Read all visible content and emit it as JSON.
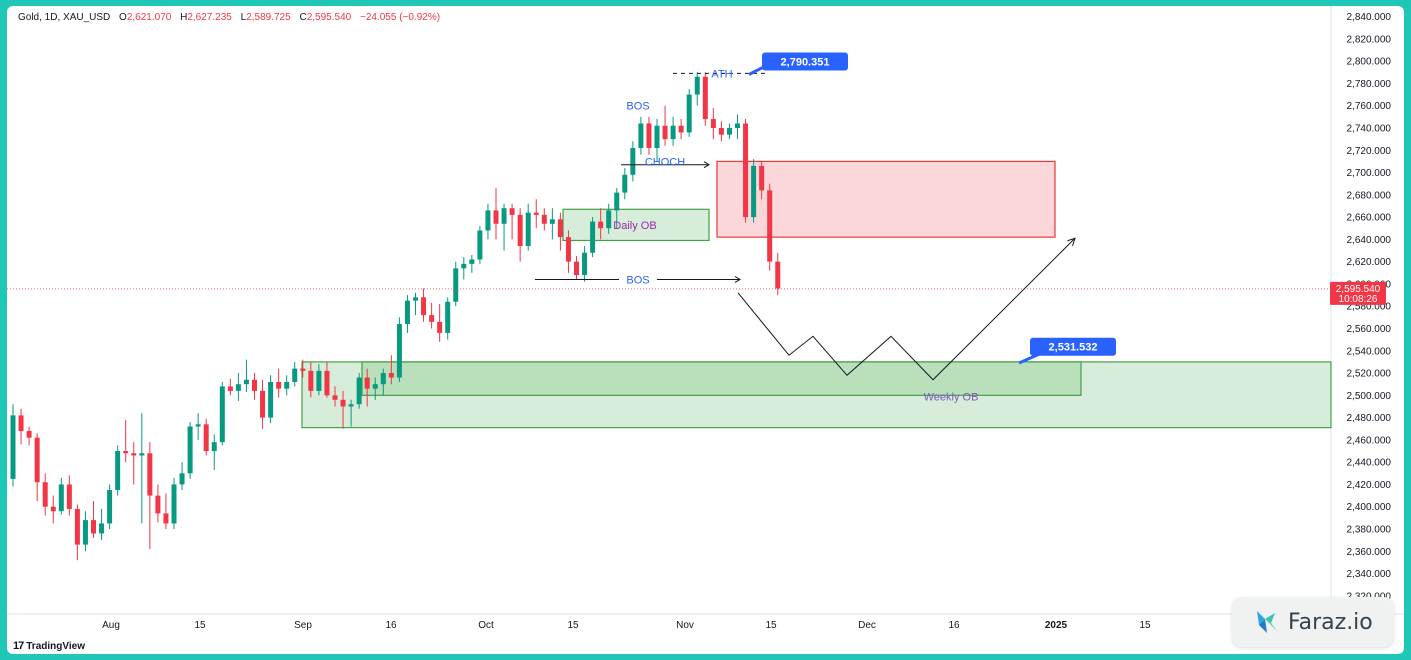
{
  "header": {
    "symbol": "Gold, 1D, XAU_USD",
    "open_label": "O",
    "open": "2,621.070",
    "high_label": "H",
    "high": "2,627.235",
    "low_label": "L",
    "low": "2,589.725",
    "close_label": "C",
    "close": "2,595.540",
    "change": "−24.055 (−0.92%)"
  },
  "footer": {
    "brand": "TradingView"
  },
  "watermark": {
    "text": "Faraz.io"
  },
  "colors": {
    "up": "#089981",
    "down": "#f23645",
    "zone_green": "#4caf50",
    "zone_red": "#f23645",
    "label_blue": "#2962ff"
  },
  "chart_data": {
    "type": "candlestick",
    "y_range": [
      2310,
      2845
    ],
    "price_ticks": [
      "2,320.000",
      "2,340.000",
      "2,360.000",
      "2,380.000",
      "2,400.000",
      "2,420.000",
      "2,440.000",
      "2,460.000",
      "2,480.000",
      "2,500.000",
      "2,520.000",
      "2,540.000",
      "2,560.000",
      "2,580.000",
      "2,600.000",
      "2,620.000",
      "2,640.000",
      "2,660.000",
      "2,680.000",
      "2,700.000",
      "2,720.000",
      "2,740.000",
      "2,760.000",
      "2,780.000",
      "2,800.000",
      "2,820.000",
      "2,840.000"
    ],
    "time_ticks": [
      {
        "label": "Aug",
        "x": 82
      },
      {
        "label": "15",
        "x": 171
      },
      {
        "label": "Sep",
        "x": 274
      },
      {
        "label": "16",
        "x": 362
      },
      {
        "label": "Oct",
        "x": 457
      },
      {
        "label": "15",
        "x": 544
      },
      {
        "label": "Nov",
        "x": 656
      },
      {
        "label": "15",
        "x": 742
      },
      {
        "label": "Dec",
        "x": 838
      },
      {
        "label": "16",
        "x": 925
      },
      {
        "label": "2025",
        "x": 1027
      },
      {
        "label": "15",
        "x": 1116
      }
    ],
    "current_price": {
      "price": 2595.54,
      "label": "2,595.540",
      "countdown": "10:08:26"
    },
    "candles": [
      [
        2425,
        2492,
        2418,
        2482
      ],
      [
        2482,
        2488,
        2456,
        2468
      ],
      [
        2468,
        2472,
        2455,
        2462
      ],
      [
        2462,
        2466,
        2405,
        2422
      ],
      [
        2422,
        2430,
        2392,
        2400
      ],
      [
        2400,
        2410,
        2385,
        2396
      ],
      [
        2396,
        2426,
        2393,
        2420
      ],
      [
        2420,
        2428,
        2392,
        2398
      ],
      [
        2398,
        2402,
        2352,
        2366
      ],
      [
        2366,
        2396,
        2360,
        2388
      ],
      [
        2388,
        2405,
        2372,
        2376
      ],
      [
        2376,
        2398,
        2370,
        2385
      ],
      [
        2385,
        2420,
        2380,
        2415
      ],
      [
        2415,
        2455,
        2410,
        2450
      ],
      [
        2450,
        2478,
        2440,
        2448
      ],
      [
        2448,
        2458,
        2420,
        2446
      ],
      [
        2446,
        2484,
        2385,
        2448
      ],
      [
        2448,
        2458,
        2362,
        2410
      ],
      [
        2410,
        2420,
        2386,
        2394
      ],
      [
        2394,
        2412,
        2380,
        2385
      ],
      [
        2385,
        2426,
        2380,
        2420
      ],
      [
        2420,
        2440,
        2415,
        2430
      ],
      [
        2430,
        2476,
        2425,
        2472
      ],
      [
        2472,
        2484,
        2460,
        2474
      ],
      [
        2474,
        2479,
        2446,
        2450
      ],
      [
        2450,
        2465,
        2433,
        2458
      ],
      [
        2458,
        2512,
        2455,
        2508
      ],
      [
        2508,
        2515,
        2500,
        2504
      ],
      [
        2504,
        2520,
        2495,
        2510
      ],
      [
        2510,
        2532,
        2503,
        2514
      ],
      [
        2514,
        2520,
        2496,
        2504
      ],
      [
        2504,
        2514,
        2470,
        2480
      ],
      [
        2480,
        2518,
        2475,
        2512
      ],
      [
        2512,
        2524,
        2498,
        2506
      ],
      [
        2506,
        2518,
        2500,
        2512
      ],
      [
        2512,
        2530,
        2508,
        2524
      ],
      [
        2524,
        2532,
        2516,
        2522
      ],
      [
        2522,
        2530,
        2498,
        2504
      ],
      [
        2504,
        2528,
        2500,
        2522
      ],
      [
        2522,
        2530,
        2498,
        2500
      ],
      [
        2500,
        2508,
        2490,
        2496
      ],
      [
        2496,
        2504,
        2470,
        2490
      ],
      [
        2490,
        2496,
        2472,
        2492
      ],
      [
        2492,
        2520,
        2488,
        2516
      ],
      [
        2516,
        2524,
        2490,
        2506
      ],
      [
        2506,
        2516,
        2496,
        2510
      ],
      [
        2510,
        2524,
        2500,
        2520
      ],
      [
        2520,
        2536,
        2510,
        2516
      ],
      [
        2516,
        2570,
        2512,
        2564
      ],
      [
        2564,
        2590,
        2556,
        2585
      ],
      [
        2585,
        2592,
        2572,
        2588
      ],
      [
        2588,
        2596,
        2566,
        2572
      ],
      [
        2572,
        2583,
        2560,
        2566
      ],
      [
        2566,
        2582,
        2548,
        2556
      ],
      [
        2556,
        2588,
        2550,
        2584
      ],
      [
        2584,
        2620,
        2580,
        2614
      ],
      [
        2614,
        2624,
        2604,
        2618
      ],
      [
        2618,
        2626,
        2610,
        2622
      ],
      [
        2622,
        2652,
        2618,
        2648
      ],
      [
        2648,
        2672,
        2640,
        2666
      ],
      [
        2666,
        2686,
        2640,
        2654
      ],
      [
        2654,
        2672,
        2630,
        2668
      ],
      [
        2668,
        2672,
        2640,
        2662
      ],
      [
        2662,
        2668,
        2620,
        2634
      ],
      [
        2634,
        2672,
        2630,
        2664
      ],
      [
        2664,
        2676,
        2650,
        2662
      ],
      [
        2662,
        2668,
        2648,
        2654
      ],
      [
        2654,
        2668,
        2640,
        2658
      ],
      [
        2658,
        2664,
        2630,
        2642
      ],
      [
        2642,
        2648,
        2610,
        2620
      ],
      [
        2620,
        2625,
        2604,
        2608
      ],
      [
        2608,
        2634,
        2602,
        2628
      ],
      [
        2628,
        2660,
        2624,
        2656
      ],
      [
        2656,
        2668,
        2640,
        2650
      ],
      [
        2650,
        2672,
        2645,
        2666
      ],
      [
        2666,
        2686,
        2650,
        2682
      ],
      [
        2682,
        2704,
        2676,
        2698
      ],
      [
        2698,
        2728,
        2692,
        2722
      ],
      [
        2722,
        2750,
        2716,
        2744
      ],
      [
        2744,
        2750,
        2716,
        2722
      ],
      [
        2722,
        2748,
        2710,
        2742
      ],
      [
        2742,
        2760,
        2724,
        2730
      ],
      [
        2730,
        2750,
        2724,
        2742
      ],
      [
        2742,
        2748,
        2730,
        2736
      ],
      [
        2736,
        2775,
        2732,
        2770
      ],
      [
        2770,
        2790,
        2760,
        2786
      ],
      [
        2786,
        2790,
        2742,
        2748
      ],
      [
        2748,
        2758,
        2730,
        2740
      ],
      [
        2740,
        2746,
        2728,
        2734
      ],
      [
        2734,
        2744,
        2730,
        2740
      ],
      [
        2740,
        2752,
        2730,
        2744
      ],
      [
        2744,
        2748,
        2655,
        2660
      ],
      [
        2660,
        2712,
        2655,
        2706
      ],
      [
        2706,
        2710,
        2676,
        2684
      ],
      [
        2684,
        2690,
        2612,
        2620
      ],
      [
        2620,
        2628,
        2590,
        2596
      ]
    ],
    "zones": [
      {
        "name": "Daily OB",
        "kind": "green",
        "x1": 556,
        "x2": 702,
        "top": 2667,
        "bottom": 2639
      },
      {
        "name": "",
        "kind": "red",
        "x1": 710,
        "x2": 1048,
        "top": 2710,
        "bottom": 2642
      },
      {
        "name": "Weekly OB",
        "kind": "green",
        "x1": 295,
        "x2": 1324,
        "top": 2530,
        "bottom": 2471
      },
      {
        "name": "",
        "kind": "green",
        "x1": 355,
        "x2": 1074,
        "top": 2530,
        "bottom": 2500
      }
    ],
    "annotations": [
      {
        "text": "ATH",
        "price": 2789
      },
      {
        "text": "BOS",
        "price": 2760
      },
      {
        "text": "CHOCH",
        "price": 2710
      },
      {
        "text": "Daily OB",
        "price": 2653
      },
      {
        "text": "BOS",
        "price": 2604
      },
      {
        "text": "Weekly OB",
        "price": 2499
      }
    ],
    "callouts": [
      {
        "label": "2,790.351",
        "price": 2790.351
      },
      {
        "label": "2,531.532",
        "price": 2531.532
      }
    ],
    "projection": [
      [
        731,
        2592
      ],
      [
        782,
        2536
      ],
      [
        806,
        2553
      ],
      [
        840,
        2518
      ],
      [
        884,
        2553
      ],
      [
        926,
        2514
      ],
      [
        1068,
        2641
      ]
    ]
  }
}
